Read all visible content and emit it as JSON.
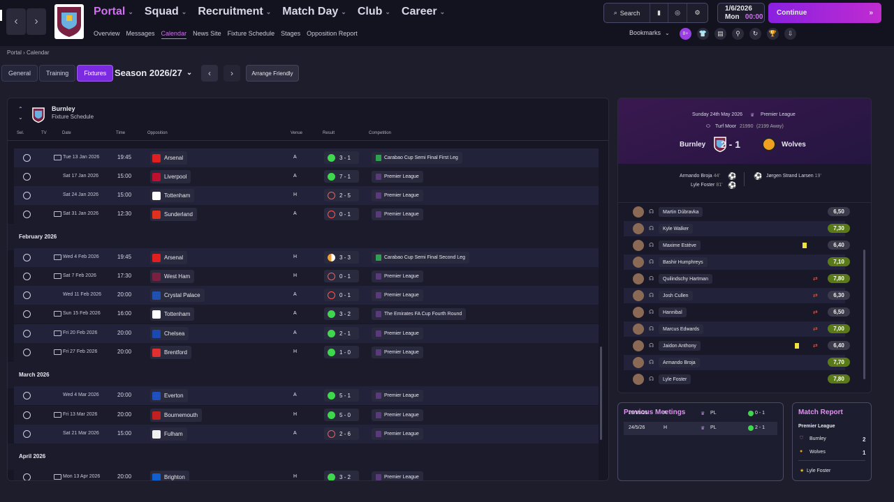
{
  "header": {
    "menus": [
      "Portal",
      "Squad",
      "Recruitment",
      "Match Day",
      "Club",
      "Career"
    ],
    "subnav": [
      "Overview",
      "Messages",
      "Calendar",
      "News Site",
      "Fixture Schedule",
      "Stages",
      "Opposition Report"
    ],
    "search": "Search",
    "date": "1/6/2026",
    "day": "Mon",
    "time": "00:00",
    "continue": "Continue",
    "bookmarks": "Bookmarks",
    "badge": "8+"
  },
  "breadcrumb": {
    "a": "Portal",
    "b": "Calendar"
  },
  "tabs": [
    "General",
    "Training",
    "Fixtures"
  ],
  "season": "Season 2026/27",
  "arrange": "Arrange Friendly",
  "team": {
    "name": "Burnley",
    "sub": "Fixture Schedule"
  },
  "columns": {
    "sel": "Sel.",
    "tv": "TV",
    "date": "Date",
    "time": "Time",
    "opp": "Opposition",
    "venue": "Venue",
    "result": "Result",
    "comp": "Competition"
  },
  "months": {
    "feb": "February 2026",
    "mar": "March 2026",
    "apr": "April 2026"
  },
  "fixtures": [
    {
      "date": "Tue 13 Jan 2026",
      "time": "19:45",
      "opp": "Arsenal",
      "venue": "A",
      "res": "3 - 1",
      "comp": "Carabao Cup Semi Final First Leg"
    },
    {
      "date": "Sat 17 Jan 2026",
      "time": "15:00",
      "opp": "Liverpool",
      "venue": "A",
      "res": "7 - 1",
      "comp": "Premier League"
    },
    {
      "date": "Sat 24 Jan 2026",
      "time": "15:00",
      "opp": "Tottenham",
      "venue": "H",
      "res": "2 - 5",
      "comp": "Premier League"
    },
    {
      "date": "Sat 31 Jan 2026",
      "time": "12:30",
      "opp": "Sunderland",
      "venue": "A",
      "res": "0 - 1",
      "comp": "Premier League"
    },
    {
      "date": "Wed 4 Feb 2026",
      "time": "19:45",
      "opp": "Arsenal",
      "venue": "H",
      "res": "3 - 3",
      "comp": "Carabao Cup Semi Final Second Leg"
    },
    {
      "date": "Sat 7 Feb 2026",
      "time": "17:30",
      "opp": "West Ham",
      "venue": "H",
      "res": "0 - 1",
      "comp": "Premier League"
    },
    {
      "date": "Wed 11 Feb 2026",
      "time": "20:00",
      "opp": "Crystal Palace",
      "venue": "A",
      "res": "0 - 1",
      "comp": "Premier League"
    },
    {
      "date": "Sun 15 Feb 2026",
      "time": "16:00",
      "opp": "Tottenham",
      "venue": "A",
      "res": "3 - 2",
      "comp": "The Emirates FA Cup Fourth Round"
    },
    {
      "date": "Fri 20 Feb 2026",
      "time": "20:00",
      "opp": "Chelsea",
      "venue": "A",
      "res": "2 - 1",
      "comp": "Premier League"
    },
    {
      "date": "Fri 27 Feb 2026",
      "time": "20:00",
      "opp": "Brentford",
      "venue": "H",
      "res": "1 - 0",
      "comp": "Premier League"
    },
    {
      "date": "Wed 4 Mar 2026",
      "time": "20:00",
      "opp": "Everton",
      "venue": "A",
      "res": "5 - 1",
      "comp": "Premier League"
    },
    {
      "date": "Fri 13 Mar 2026",
      "time": "20:00",
      "opp": "Bournemouth",
      "venue": "H",
      "res": "5 - 0",
      "comp": "Premier League"
    },
    {
      "date": "Sat 21 Mar 2026",
      "time": "15:00",
      "opp": "Fulham",
      "venue": "A",
      "res": "2 - 6",
      "comp": "Premier League"
    },
    {
      "date": "Mon 13 Apr 2026",
      "time": "20:00",
      "opp": "Brighton",
      "venue": "H",
      "res": "3 - 2",
      "comp": "Premier League"
    }
  ],
  "match": {
    "date": "Sunday 24th May 2026",
    "comp": "Premier League",
    "stadium": "Turf Moor",
    "att": "21990",
    "away": "(2199 Away)",
    "home": "Burnley",
    "score": "2 - 1",
    "awayTeam": "Wolves",
    "s1": "Armando Broja",
    "m1": "44'",
    "s2": "Lyle Foster",
    "m2": "81'",
    "s3": "Jørgen Strand Larsen",
    "m3": "19'"
  },
  "players": [
    {
      "n": "Martin Dúbravka",
      "r": "6,50"
    },
    {
      "n": "Kyle Walker",
      "r": "7,30"
    },
    {
      "n": "Maxime Estève",
      "r": "6,40"
    },
    {
      "n": "Bashir Humphreys",
      "r": "7,10"
    },
    {
      "n": "Quilindschy Hartman",
      "r": "7,80"
    },
    {
      "n": "Josh Cullen",
      "r": "6,30"
    },
    {
      "n": "Hannibal",
      "r": "6,50"
    },
    {
      "n": "Marcus Edwards",
      "r": "7,00"
    },
    {
      "n": "Jaidon Anthony",
      "r": "6,40"
    },
    {
      "n": "Armando Broja",
      "r": "7,70"
    },
    {
      "n": "Lyle Foster",
      "r": "7,80"
    }
  ],
  "prev": {
    "title": "Previous Meetings",
    "rows": [
      {
        "d": "25/10/25",
        "v": "A",
        "c": "PL",
        "r": "0 - 1"
      },
      {
        "d": "24/5/26",
        "v": "H",
        "c": "PL",
        "r": "2 - 1"
      }
    ]
  },
  "report": {
    "title": "Match Report",
    "comp": "Premier League",
    "home": "Burnley",
    "hs": "2",
    "away": "Wolves",
    "as": "1",
    "potm": "Lyle Foster"
  }
}
